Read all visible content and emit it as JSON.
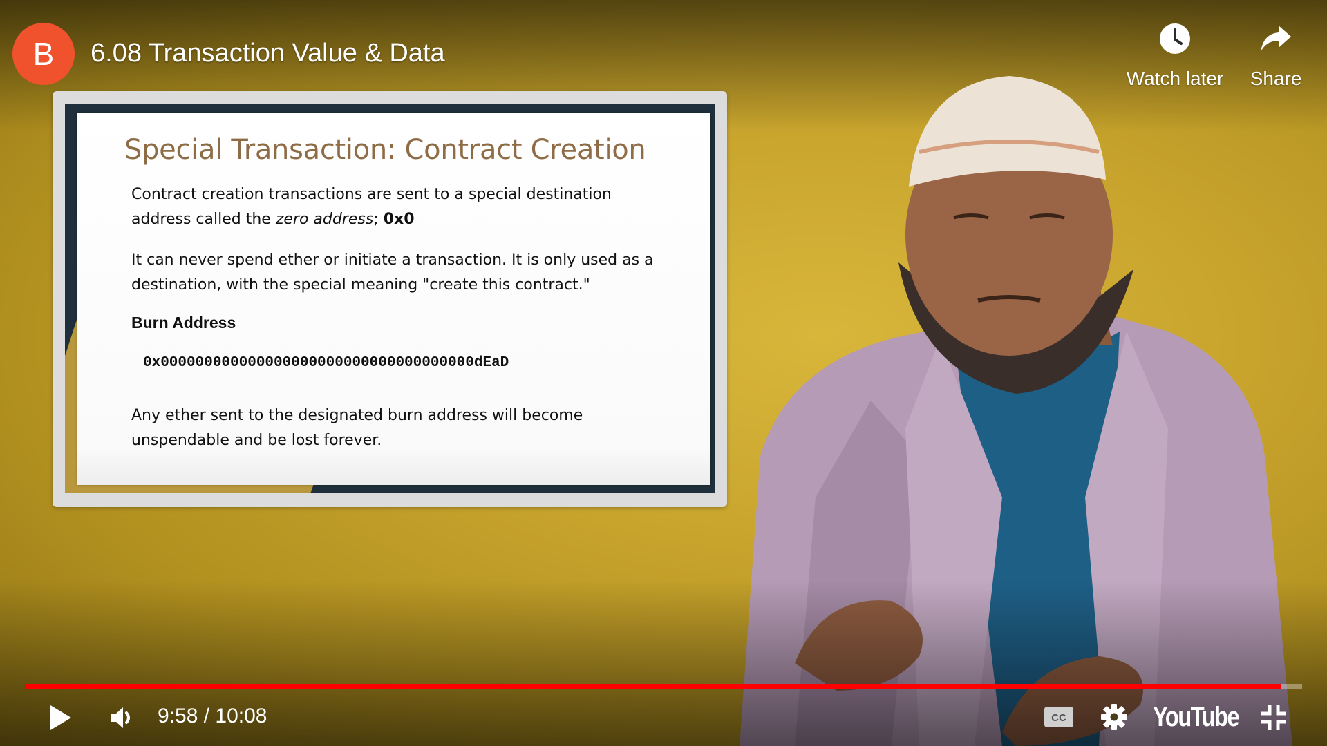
{
  "channel": {
    "avatar_letter": "B",
    "avatar_color": "#f0522d"
  },
  "video": {
    "title": "6.08 Transaction Value & Data"
  },
  "top_actions": {
    "watch_later": {
      "label": "Watch later",
      "icon": "clock-icon"
    },
    "share": {
      "label": "Share",
      "icon": "share-arrow-icon"
    }
  },
  "slide": {
    "title": "Special Transaction: Contract Creation",
    "p1_a": "Contract creation transactions are sent to a special destination address called the ",
    "p1_em": "zero address",
    "p1_b": "; ",
    "p1_bold": "0x0",
    "p2": "It can never spend ether or initiate a transaction. It is only used as a destination, with the special meaning \"create this contract.\"",
    "burn_heading": "Burn Address",
    "burn_address": "0x000000000000000000000000000000000000dEaD",
    "p4": "Any ether sent to the designated burn address will become unspendable and be lost forever."
  },
  "player": {
    "current_time": "9:58",
    "duration": "10:08",
    "time_display": "9:58 / 10:08",
    "progress_fraction": 0.984,
    "progress_color": "#ff0000",
    "logo_text": "YouTube",
    "icons": {
      "play": "play-icon",
      "volume": "volume-icon",
      "cc": "closed-captions-icon",
      "settings": "gear-icon",
      "fullscreen": "exit-fullscreen-icon"
    }
  }
}
